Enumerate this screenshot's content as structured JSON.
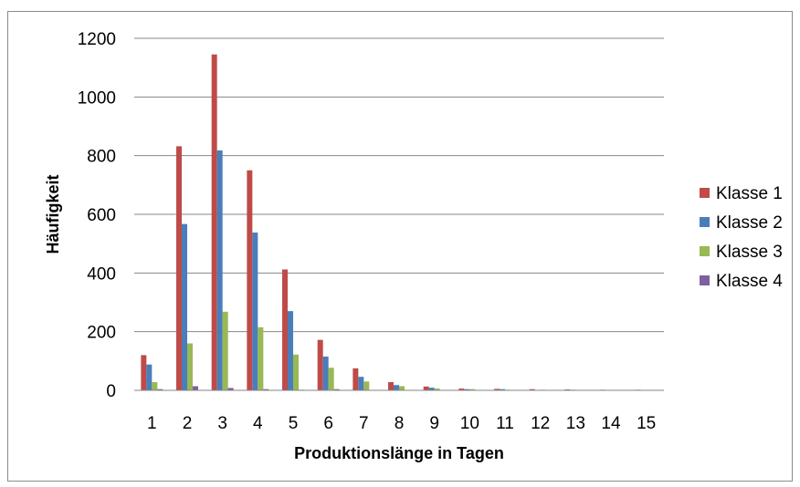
{
  "chart_data": {
    "type": "bar",
    "title": "",
    "xlabel": "Produktionslänge in Tagen",
    "ylabel": "Häufigkeit",
    "ylim": [
      0,
      1200
    ],
    "yticks": [
      "0",
      "200",
      "400",
      "600",
      "800",
      "1000",
      "1200"
    ],
    "categories": [
      "1",
      "2",
      "3",
      "4",
      "5",
      "6",
      "7",
      "8",
      "9",
      "10",
      "11",
      "12",
      "13",
      "14",
      "15"
    ],
    "grid": true,
    "legend_position": "right",
    "series": [
      {
        "name": "Klasse 1",
        "color": "#BE4B48",
        "values": [
          120,
          832,
          1145,
          750,
          412,
          172,
          75,
          28,
          13,
          6,
          5,
          4,
          3,
          2,
          2
        ]
      },
      {
        "name": "Klasse 2",
        "color": "#4A7EBB",
        "values": [
          88,
          567,
          818,
          538,
          270,
          115,
          46,
          18,
          9,
          4,
          4,
          1,
          2,
          1,
          0
        ]
      },
      {
        "name": "Klasse 3",
        "color": "#98B954",
        "values": [
          28,
          160,
          268,
          215,
          122,
          77,
          30,
          14,
          6,
          4,
          2,
          2,
          1,
          0,
          0
        ]
      },
      {
        "name": "Klasse 4",
        "color": "#7D60A0",
        "values": [
          4,
          14,
          8,
          4,
          2,
          4,
          1,
          1,
          0,
          0,
          0,
          0,
          0,
          0,
          0
        ]
      }
    ]
  }
}
